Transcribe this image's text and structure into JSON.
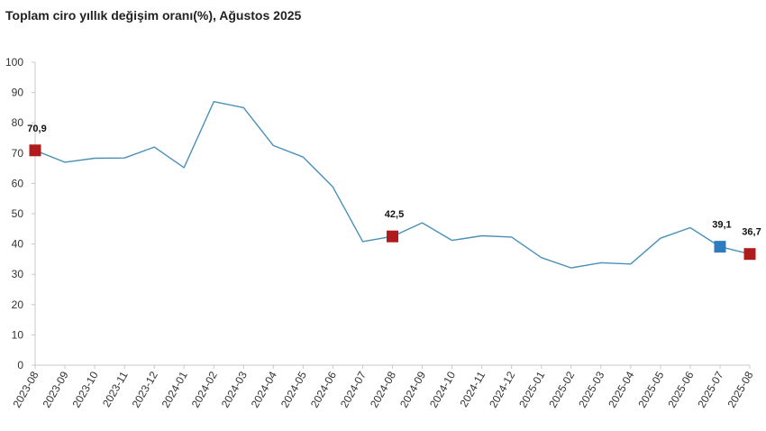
{
  "chart_data": {
    "type": "line",
    "title": "Toplam ciro yıllık değişim oranı(%), Ağustos 2025",
    "xlabel": "",
    "ylabel": "",
    "ylim": [
      0,
      100
    ],
    "yticks": [
      0,
      10,
      20,
      30,
      40,
      50,
      60,
      70,
      80,
      90,
      100
    ],
    "categories": [
      "2023-08",
      "2023-09",
      "2023-10",
      "2023-11",
      "2023-12",
      "2024-01",
      "2024-02",
      "2024-03",
      "2024-04",
      "2024-05",
      "2024-06",
      "2024-07",
      "2024-08",
      "2024-09",
      "2024-10",
      "2024-11",
      "2024-12",
      "2025-01",
      "2025-02",
      "2025-03",
      "2025-04",
      "2025-05",
      "2025-06",
      "2025-07",
      "2025-08"
    ],
    "series": [
      {
        "name": "",
        "color": "#4a90b8",
        "values": [
          70.9,
          67.0,
          68.3,
          68.4,
          72.0,
          65.2,
          87.0,
          85.0,
          72.5,
          68.7,
          58.8,
          40.8,
          42.5,
          47.0,
          41.2,
          42.7,
          42.3,
          35.5,
          32.1,
          33.8,
          33.4,
          41.9,
          45.4,
          39.1,
          36.7
        ]
      }
    ],
    "highlights": [
      {
        "category": "2023-08",
        "value": 70.9,
        "label": "70,9",
        "color": "#b01c1c"
      },
      {
        "category": "2024-08",
        "value": 42.5,
        "label": "42,5",
        "color": "#b01c1c"
      },
      {
        "category": "2025-07",
        "value": 39.1,
        "label": "39,1",
        "color": "#2e7bbf"
      },
      {
        "category": "2025-08",
        "value": 36.7,
        "label": "36,7",
        "color": "#b01c1c"
      }
    ],
    "grid": false,
    "axis_color": "#c8c8c8"
  }
}
